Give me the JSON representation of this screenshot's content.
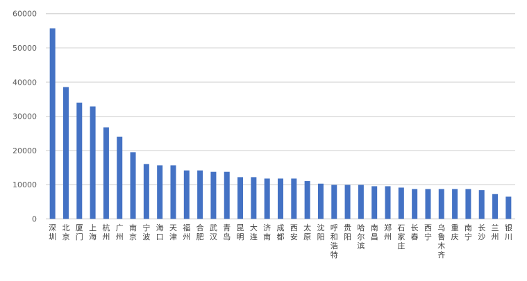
{
  "chart_data": {
    "type": "bar",
    "title": "",
    "xlabel": "",
    "ylabel": "",
    "ylim": [
      0,
      60000
    ],
    "yticks": [
      0,
      10000,
      20000,
      30000,
      40000,
      50000,
      60000
    ],
    "ytick_labels": [
      "0",
      "10000",
      "20000",
      "30000",
      "40000",
      "50000",
      "60000"
    ],
    "grid": true,
    "legend": "none",
    "bar_color": "#4472C4",
    "categories": [
      "深圳",
      "北京",
      "厦门",
      "上海",
      "杭州",
      "广州",
      "南京",
      "宁波",
      "海口",
      "天津",
      "福州",
      "合肥",
      "武汉",
      "青岛",
      "昆明",
      "大连",
      "济南",
      "成都",
      "西安",
      "太原",
      "沈阳",
      "呼和浩特",
      "贵阳",
      "哈尔滨",
      "南昌",
      "郑州",
      "石家庄",
      "长春",
      "西宁",
      "乌鲁木齐",
      "重庆",
      "南宁",
      "长沙",
      "兰州",
      "银川"
    ],
    "values": [
      55700,
      38550,
      34000,
      32870,
      26770,
      24050,
      19500,
      16050,
      15650,
      15650,
      14170,
      14170,
      13760,
      13760,
      12200,
      12200,
      11790,
      11790,
      11790,
      11050,
      10300,
      9960,
      9960,
      9960,
      9550,
      9550,
      9150,
      8740,
      8740,
      8740,
      8740,
      8740,
      8400,
      7250,
      6500
    ]
  }
}
